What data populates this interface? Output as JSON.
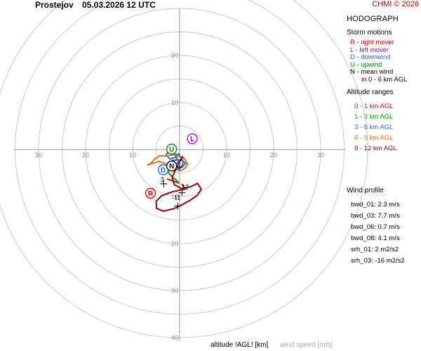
{
  "header": {
    "station": "Prostejov",
    "datetime": "05.03.2026 12 UTC",
    "credit": "CHMI © 2026"
  },
  "panel": {
    "title": "HODOGRAPH",
    "storm_motions": {
      "title": "Storm motions",
      "items": [
        {
          "text": "R - right mover",
          "color": "#e00000"
        },
        {
          "text": "L - left mover",
          "color": "#9900cc"
        },
        {
          "text": "D - downwind",
          "color": "#1565d6"
        },
        {
          "text": "U - upwind",
          "color": "#008800"
        },
        {
          "text": "N - mean wind",
          "color": "#000000"
        },
        {
          "text": "in 0 - 6 km AGL",
          "color": "#000000"
        }
      ]
    },
    "altitude_ranges": {
      "title": "Altitude ranges",
      "items": [
        {
          "text": "0 - 1 km AGL",
          "color": "#ee0000"
        },
        {
          "text": "1 - 3 km AGL",
          "color": "#00aa00"
        },
        {
          "text": "3 - 6 km AGL",
          "color": "#1e6fe0"
        },
        {
          "text": "6 - 9 km AGL",
          "color": "#e07020"
        },
        {
          "text": "9 - 12 km AGL",
          "color": "#990000"
        }
      ]
    },
    "wind_profile": {
      "title": "Wind profile",
      "bwd": [
        "bwd_01: 2.3 m/s",
        "bwd_03: 7.7 m/s",
        "bwd_06: 0.7 m/s",
        "bwd_08: 4.1 m/s"
      ],
      "srh": [
        "srh_01: 2 m2/s2",
        "srh_03: -16 m2/s2"
      ]
    }
  },
  "footer": {
    "altitude_label": "altitude !AGL! [km]",
    "windspeed_label": "wind speed [m/s]"
  },
  "chart_data": {
    "type": "hodograph",
    "xlabel": "",
    "ylabel": "",
    "rings_ms": [
      5,
      10,
      15,
      20,
      25,
      30,
      35,
      40
    ],
    "labeled_rings_ms": [
      10,
      20,
      30,
      40
    ],
    "axis_tick_labels": {
      "up": [
        "10",
        "20"
      ],
      "down": [
        "10",
        "20",
        "30",
        "40"
      ],
      "left": [
        "10",
        "20",
        "30"
      ],
      "right": [
        "10",
        "20",
        "30"
      ]
    },
    "grid": true,
    "series": [
      {
        "name": "0 - 1 km AGL",
        "color": "#ee0000",
        "u": [
          -2.6,
          -1.6,
          -0.8,
          -0.2
        ],
        "v": [
          -6.3,
          -6.6,
          -6.9,
          -7.1
        ]
      },
      {
        "name": "1 - 3 km AGL",
        "color": "#00aa00",
        "u": [
          -0.2,
          -0.8,
          -1.6,
          -2.3,
          -2.8,
          -2.1,
          -1.2,
          -0.6,
          -0.7,
          -1.8,
          -2.3
        ],
        "v": [
          -7.1,
          -6.4,
          -5.8,
          -5.0,
          -3.7,
          -2.6,
          -2.5,
          -2.0,
          -1.0,
          -0.9,
          -0.4
        ]
      },
      {
        "name": "3 - 6 km AGL",
        "color": "#1e6fe0",
        "u": [
          -2.3,
          -2.9,
          -2.1,
          -1.0,
          -0.2,
          0.4,
          -0.5,
          -1.3,
          -0.8,
          0.5,
          1.3,
          0.2,
          -1.6,
          -2.3,
          -1.2,
          0.4,
          0.8
        ],
        "v": [
          -0.4,
          -1.1,
          -2.0,
          -1.7,
          -0.9,
          -1.9,
          -2.8,
          -3.5,
          -4.0,
          -3.7,
          -2.9,
          -2.2,
          -2.3,
          -3.4,
          -4.5,
          -3.8,
          -2.5
        ]
      },
      {
        "name": "6 - 9 km AGL",
        "color": "#e07020",
        "u": [
          0.8,
          0.4,
          -1.3,
          -3.0,
          -4.2,
          -5.3,
          -6.1,
          -6.8,
          -5.9,
          -4.3,
          -2.6,
          -1.3,
          0.2,
          1.1,
          1.7,
          1.2,
          0.6
        ],
        "v": [
          -2.5,
          -1.6,
          -1.1,
          -1.4,
          -1.3,
          -2.0,
          -2.9,
          -3.3,
          -3.0,
          -2.5,
          -3.2,
          -4.1,
          -4.5,
          -4.0,
          -3.1,
          -2.2,
          -1.5
        ]
      },
      {
        "name": "9 - 12 km AGL",
        "color": "#990000",
        "u": [
          0.6,
          -0.6,
          -1.6,
          -1.1,
          0.4,
          2.4,
          3.8,
          4.6,
          3.8,
          2.2,
          0.6,
          -1.3,
          -3.5,
          -4.9,
          -5.0,
          -3.8,
          -1.6,
          0.2,
          1.2,
          0.5
        ],
        "v": [
          -1.5,
          -3.7,
          -5.9,
          -7.5,
          -8.3,
          -7.9,
          -7.2,
          -8.4,
          -9.7,
          -10.8,
          -11.7,
          -12.6,
          -13.1,
          -12.5,
          -11.0,
          -9.8,
          -9.0,
          -8.6,
          -8.4,
          -7.4
        ]
      }
    ],
    "altitude_labels": [
      {
        "text": "3",
        "u": -3.7,
        "v": -6.9
      },
      {
        "text": "12",
        "u": 1.2,
        "v": -8.4
      },
      {
        "text": "11",
        "u": -0.5,
        "v": -10.7
      }
    ],
    "cross_markers": [
      {
        "u": 0.5,
        "v": -9.2
      },
      {
        "u": -0.4,
        "v": -12.0
      },
      {
        "u": -3.4,
        "v": -7.3
      },
      {
        "u": 0.0,
        "v": -3.7
      }
    ],
    "storm_motions": [
      {
        "label": "R",
        "u": -6.2,
        "v": -9.3,
        "color": "#e00000"
      },
      {
        "label": "L",
        "u": 2.7,
        "v": 2.3,
        "color": "#9900cc"
      },
      {
        "label": "D",
        "u": -3.5,
        "v": -4.3,
        "color": "#1565d6"
      },
      {
        "label": "U",
        "u": -1.7,
        "v": 0.1,
        "color": "#008800"
      },
      {
        "label": "N",
        "u": -1.7,
        "v": -3.5,
        "color": "#000000"
      }
    ]
  }
}
